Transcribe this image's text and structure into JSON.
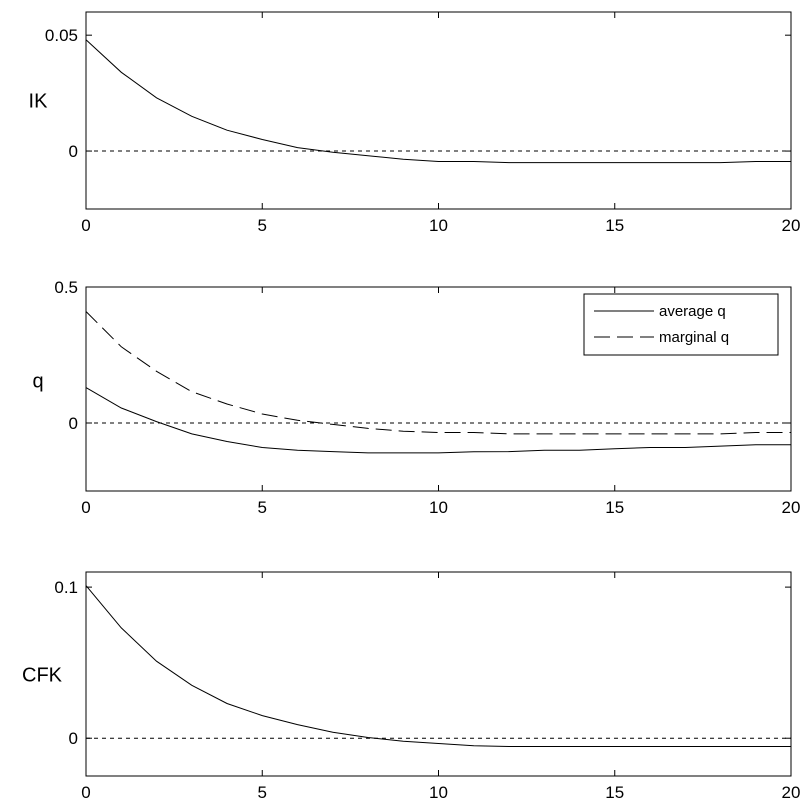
{
  "chart_data": [
    {
      "type": "line",
      "ylabel": "IK",
      "xlim": [
        0,
        20
      ],
      "ylim": [
        -0.025,
        0.06
      ],
      "xticks": [
        0,
        5,
        10,
        15,
        20
      ],
      "xtick_labels": [
        "0",
        "5",
        "10",
        "15",
        "20"
      ],
      "yticks": [
        0,
        0.05
      ],
      "ytick_labels": [
        "0",
        "0.05"
      ],
      "zero_line": true,
      "grid": false,
      "x": [
        0,
        1,
        2,
        3,
        4,
        5,
        6,
        7,
        8,
        9,
        10,
        11,
        12,
        13,
        14,
        15,
        16,
        17,
        18,
        19,
        20
      ],
      "series": [
        {
          "style": "solid",
          "values": [
            0.048,
            0.034,
            0.023,
            0.015,
            0.009,
            0.005,
            0.0015,
            -0.0005,
            -0.002,
            -0.0035,
            -0.0045,
            -0.0045,
            -0.005,
            -0.005,
            -0.005,
            -0.005,
            -0.005,
            -0.005,
            -0.005,
            -0.0045,
            -0.0045
          ]
        }
      ]
    },
    {
      "type": "line",
      "ylabel": "q",
      "xlim": [
        0,
        20
      ],
      "ylim": [
        -0.25,
        0.5
      ],
      "xticks": [
        0,
        5,
        10,
        15,
        20
      ],
      "xtick_labels": [
        "0",
        "5",
        "10",
        "15",
        "20"
      ],
      "yticks": [
        0,
        0.5
      ],
      "ytick_labels": [
        "0",
        "0.5"
      ],
      "zero_line": true,
      "grid": false,
      "legend": "top-right",
      "x": [
        0,
        1,
        2,
        3,
        4,
        5,
        6,
        7,
        8,
        9,
        10,
        11,
        12,
        13,
        14,
        15,
        16,
        17,
        18,
        19,
        20
      ],
      "series": [
        {
          "name": "average q",
          "style": "solid",
          "values": [
            0.13,
            0.055,
            0.005,
            -0.04,
            -0.068,
            -0.09,
            -0.1,
            -0.105,
            -0.11,
            -0.11,
            -0.11,
            -0.106,
            -0.105,
            -0.1,
            -0.1,
            -0.095,
            -0.09,
            -0.09,
            -0.085,
            -0.08,
            -0.08
          ]
        },
        {
          "name": "marginal q",
          "style": "dashed",
          "values": [
            0.41,
            0.28,
            0.19,
            0.115,
            0.07,
            0.033,
            0.01,
            -0.005,
            -0.02,
            -0.03,
            -0.035,
            -0.035,
            -0.04,
            -0.04,
            -0.04,
            -0.04,
            -0.04,
            -0.04,
            -0.04,
            -0.035,
            -0.035
          ]
        }
      ]
    },
    {
      "type": "line",
      "ylabel": "CFK",
      "xlim": [
        0,
        20
      ],
      "ylim": [
        -0.025,
        0.11
      ],
      "xticks": [
        0,
        5,
        10,
        15,
        20
      ],
      "xtick_labels": [
        "0",
        "5",
        "10",
        "15",
        "20"
      ],
      "yticks": [
        0,
        0.1
      ],
      "ytick_labels": [
        "0",
        "0.1"
      ],
      "zero_line": true,
      "grid": false,
      "x": [
        0,
        1,
        2,
        3,
        4,
        5,
        6,
        7,
        8,
        9,
        10,
        11,
        12,
        13,
        14,
        15,
        16,
        17,
        18,
        19,
        20
      ],
      "series": [
        {
          "style": "solid",
          "values": [
            0.101,
            0.073,
            0.051,
            0.035,
            0.023,
            0.015,
            0.009,
            0.004,
            0.0005,
            -0.002,
            -0.0035,
            -0.005,
            -0.0055,
            -0.0055,
            -0.0055,
            -0.0055,
            -0.0055,
            -0.0055,
            -0.0055,
            -0.0055,
            -0.0055
          ]
        }
      ]
    }
  ]
}
